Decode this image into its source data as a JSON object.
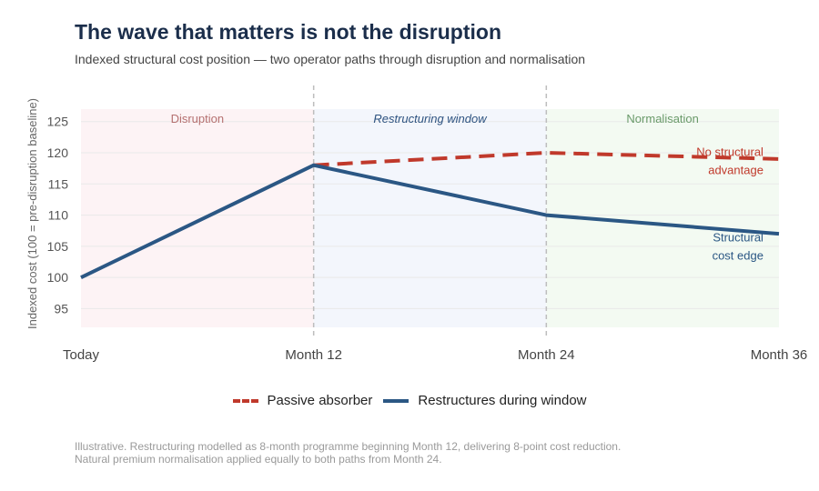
{
  "title": "The wave that matters is not the disruption",
  "subtitle": "Indexed structural cost position — two operator paths through disruption and normalisation",
  "footnote": [
    "Illustrative. Restructuring modelled as 8-month programme beginning Month 12, delivering 8-point cost reduction.",
    "Natural premium normalisation applied equally to both paths from Month 24."
  ],
  "chart_data": {
    "type": "line",
    "title": "The wave that matters is not the disruption",
    "subtitle": "Indexed structural cost position — two operator paths through disruption and normalisation",
    "xlabel": "",
    "ylabel": "Indexed cost (100 = pre-disruption baseline)",
    "x_ticks": [
      0,
      12,
      24,
      36
    ],
    "x_tick_labels": [
      "Today",
      "Month 12",
      "Month 24",
      "Month 36"
    ],
    "xlim": [
      0,
      36
    ],
    "y_ticks": [
      95,
      100,
      105,
      110,
      115,
      120,
      125
    ],
    "ylim": [
      92,
      127
    ],
    "grid": "horizontal",
    "legend": "bottom",
    "phases": [
      {
        "label": "Disruption",
        "start": 0,
        "end": 12,
        "color": "#fdf3f5",
        "label_color": "#b57070",
        "italic": false
      },
      {
        "label": "Restructuring window",
        "start": 12,
        "end": 24,
        "color": "#f3f6fc",
        "label_color": "#2e5380",
        "italic": true
      },
      {
        "label": "Normalisation",
        "start": 24,
        "end": 36,
        "color": "#f3faf2",
        "label_color": "#6a9a6a",
        "italic": false
      }
    ],
    "dividers": [
      12,
      24
    ],
    "series": [
      {
        "name": "Passive absorber",
        "color": "#c0392b",
        "dashed": true,
        "x": [
          12,
          24,
          36
        ],
        "y": [
          118,
          120,
          119
        ]
      },
      {
        "name": "Restructures during window",
        "color": "#2b5784",
        "dashed": false,
        "x": [
          0,
          12,
          24,
          36
        ],
        "y": [
          100,
          118,
          110,
          107
        ]
      }
    ],
    "annotations": [
      {
        "lines": [
          "No structural",
          "advantage"
        ],
        "x": 35.2,
        "y": 119.5,
        "color": "#c0392b"
      },
      {
        "lines": [
          "Structural",
          "cost edge"
        ],
        "x": 35.2,
        "y": 105.8,
        "color": "#2b5784"
      }
    ]
  }
}
